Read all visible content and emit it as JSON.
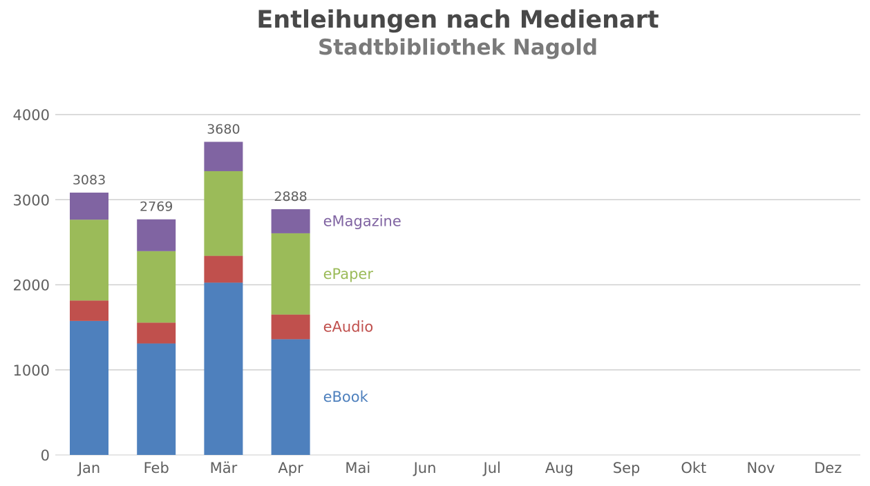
{
  "chart_data": {
    "type": "bar",
    "stacked": true,
    "title": "Entleihungen nach Medienart",
    "subtitle": "Stadtbibliothek Nagold",
    "xlabel": "",
    "ylabel": "",
    "categories": [
      "Jan",
      "Feb",
      "Mär",
      "Apr",
      "Mai",
      "Jun",
      "Jul",
      "Aug",
      "Sep",
      "Okt",
      "Nov",
      "Dez"
    ],
    "series": [
      {
        "name": "eBook",
        "color": "#4e80bd",
        "values": [
          1575,
          1310,
          2025,
          1360,
          null,
          null,
          null,
          null,
          null,
          null,
          null,
          null
        ]
      },
      {
        "name": "eAudio",
        "color": "#c0504d",
        "values": [
          240,
          245,
          315,
          290,
          null,
          null,
          null,
          null,
          null,
          null,
          null,
          null
        ]
      },
      {
        "name": "ePaper",
        "color": "#9bbb59",
        "values": [
          950,
          840,
          995,
          955,
          null,
          null,
          null,
          null,
          null,
          null,
          null,
          null
        ]
      },
      {
        "name": "eMagazine",
        "color": "#8064a2",
        "values": [
          318,
          374,
          345,
          283,
          null,
          null,
          null,
          null,
          null,
          null,
          null,
          null
        ]
      }
    ],
    "totals": [
      "3083",
      "2769",
      "3680",
      "2888",
      null,
      null,
      null,
      null,
      null,
      null,
      null,
      null
    ],
    "ylim": [
      0,
      4000
    ],
    "yticks": [
      "0",
      "1000",
      "2000",
      "3000",
      "4000"
    ],
    "grid": true,
    "legend": "inline-right-of-last-bar"
  }
}
